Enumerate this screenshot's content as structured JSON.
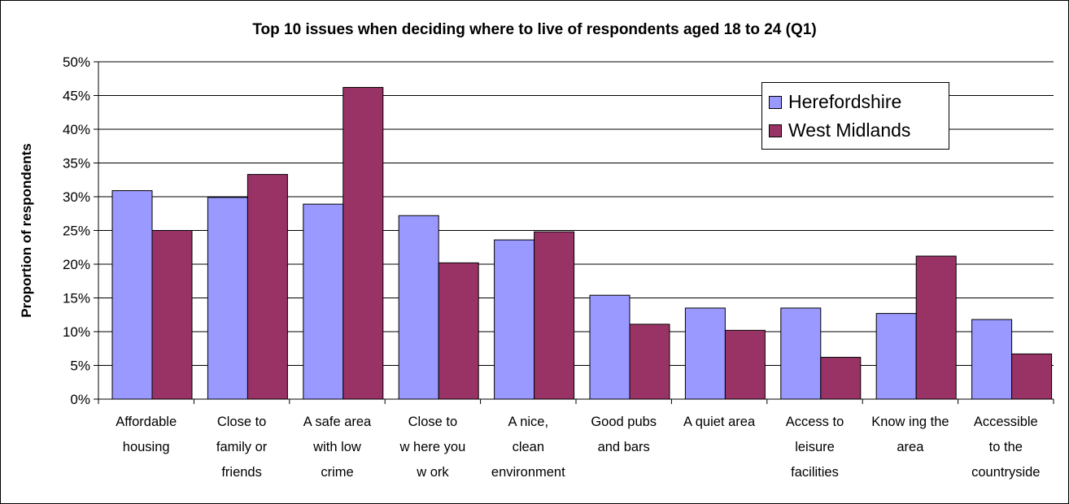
{
  "chart_data": {
    "type": "bar",
    "title": "Top 10 issues when deciding where to live of respondents aged 18 to 24 (Q1)",
    "ylabel": "Proportion of respondents",
    "xlabel": "",
    "ylim": [
      0,
      50
    ],
    "yticks": [
      "0%",
      "5%",
      "10%",
      "15%",
      "20%",
      "25%",
      "30%",
      "35%",
      "40%",
      "45%",
      "50%"
    ],
    "grid": true,
    "legend_position": "top-right",
    "categories": [
      [
        "Affordable",
        "housing"
      ],
      [
        "Close to",
        "family or",
        "friends"
      ],
      [
        "A safe area",
        "with low",
        "crime"
      ],
      [
        "Close to",
        "w here you",
        "w ork"
      ],
      [
        "A nice,",
        "clean",
        "environment"
      ],
      [
        "Good pubs",
        "and bars"
      ],
      [
        "A quiet area"
      ],
      [
        "Access to",
        "leisure",
        "facilities"
      ],
      [
        "Know ing the",
        "area"
      ],
      [
        "Accessible",
        "to the",
        "countryside"
      ]
    ],
    "series": [
      {
        "name": "Herefordshire",
        "color": "#9999ff",
        "values": [
          30.9,
          29.9,
          28.9,
          27.2,
          23.6,
          15.4,
          13.5,
          13.5,
          12.7,
          11.8
        ]
      },
      {
        "name": "West Midlands",
        "color": "#993366",
        "values": [
          25.0,
          33.3,
          46.2,
          20.2,
          24.8,
          11.1,
          10.2,
          6.2,
          21.2,
          6.7
        ]
      }
    ]
  }
}
